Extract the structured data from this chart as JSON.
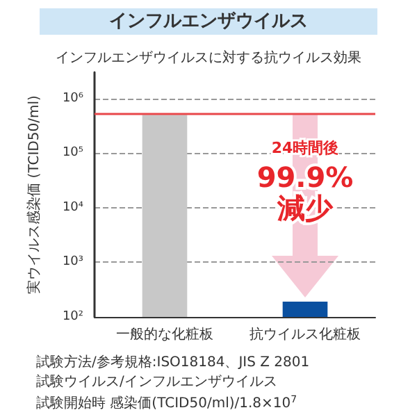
{
  "chart_data": {
    "type": "bar",
    "title": "インフルエンザウイルス",
    "subtitle": "インフルエンザウイルスに対する抗ウイルス効果",
    "ylabel": "実ウイルス感染価 (TCID50/ml)",
    "categories": [
      "一般的な化粧板",
      "抗ウイルス化粧板"
    ],
    "values": [
      500000,
      190
    ],
    "colors": [
      "#c8c8c8",
      "#0a50a0"
    ],
    "log": true,
    "ylim": [
      100,
      3000000
    ],
    "yticks": [
      {
        "value": 100,
        "label": "10²"
      },
      {
        "value": 1000,
        "label": "10³"
      },
      {
        "value": 10000,
        "label": "10⁴"
      },
      {
        "value": 100000,
        "label": "10⁵"
      },
      {
        "value": 1000000,
        "label": "10⁶"
      }
    ],
    "grid": "y",
    "ref_lines": [
      {
        "axis": "y",
        "value": 530000,
        "color": "#e8474a"
      }
    ],
    "annotations": [
      "24時間後",
      "99.9%減少",
      "試験方法/参考規格:ISO18184、JIS Z 2801",
      "試験ウイルス/インフルエンザウイルス",
      "試験開始時 感染価(TCID50/ml)/1.8×10$^{7}$"
    ]
  }
}
